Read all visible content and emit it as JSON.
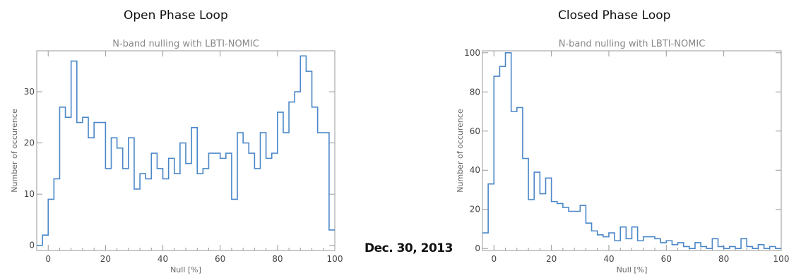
{
  "headings": {
    "left": "Open Phase Loop",
    "right": "Closed  Phase Loop",
    "date": "Dec. 30, 2013"
  },
  "colors": {
    "line": "#4a86c8",
    "axis": "#999999"
  },
  "chart_data": [
    {
      "type": "line",
      "step": true,
      "title": "N-band nulling with LBTI-NOMIC",
      "xlabel": "Null [%]",
      "ylabel": "Number of occurence",
      "xlim": [
        -4,
        100
      ],
      "ylim": [
        -1,
        38
      ],
      "xticks": [
        0,
        20,
        40,
        60,
        80,
        100
      ],
      "yticks": [
        0,
        10,
        20,
        30
      ],
      "bin_width": 2,
      "x": [
        -4,
        -2,
        0,
        2,
        4,
        6,
        8,
        10,
        12,
        14,
        16,
        18,
        20,
        22,
        24,
        26,
        28,
        30,
        32,
        34,
        36,
        38,
        40,
        42,
        44,
        46,
        48,
        50,
        52,
        54,
        56,
        58,
        60,
        62,
        64,
        66,
        68,
        70,
        72,
        74,
        76,
        78,
        80,
        82,
        84,
        86,
        88,
        90,
        92,
        94,
        96,
        98
      ],
      "values": [
        0,
        2,
        9,
        13,
        27,
        25,
        36,
        24,
        25,
        21,
        24,
        24,
        15,
        21,
        19,
        15,
        21,
        11,
        14,
        13,
        18,
        15,
        13,
        17,
        14,
        20,
        16,
        23,
        14,
        15,
        18,
        18,
        17,
        18,
        9,
        22,
        20,
        18,
        15,
        22,
        17,
        18,
        26,
        22,
        28,
        30,
        37,
        34,
        27,
        22,
        22,
        3
      ]
    },
    {
      "type": "line",
      "step": true,
      "title": "N-band nulling with LBTI-NOMIC",
      "xlabel": "Null [%]",
      "ylabel": "Number of occurence",
      "xlim": [
        -4,
        100
      ],
      "ylim": [
        -1,
        101
      ],
      "xticks": [
        0,
        20,
        40,
        60,
        80,
        100
      ],
      "yticks": [
        0,
        20,
        40,
        60,
        80,
        100
      ],
      "bin_width": 2,
      "x": [
        -4,
        -2,
        0,
        2,
        4,
        6,
        8,
        10,
        12,
        14,
        16,
        18,
        20,
        22,
        24,
        26,
        28,
        30,
        32,
        34,
        36,
        38,
        40,
        42,
        44,
        46,
        48,
        50,
        52,
        54,
        56,
        58,
        60,
        62,
        64,
        66,
        68,
        70,
        72,
        74,
        76,
        78,
        80,
        82,
        84,
        86,
        88,
        90,
        92,
        94,
        96,
        98
      ],
      "values": [
        8,
        33,
        88,
        93,
        100,
        70,
        72,
        46,
        25,
        39,
        28,
        36,
        24,
        23,
        21,
        19,
        19,
        22,
        13,
        9,
        7,
        6,
        8,
        4,
        11,
        5,
        11,
        4,
        6,
        6,
        5,
        3,
        4,
        2,
        3,
        1,
        0,
        3,
        1,
        0,
        5,
        1,
        0,
        1,
        0,
        5,
        1,
        0,
        2,
        0,
        1,
        0
      ]
    }
  ]
}
